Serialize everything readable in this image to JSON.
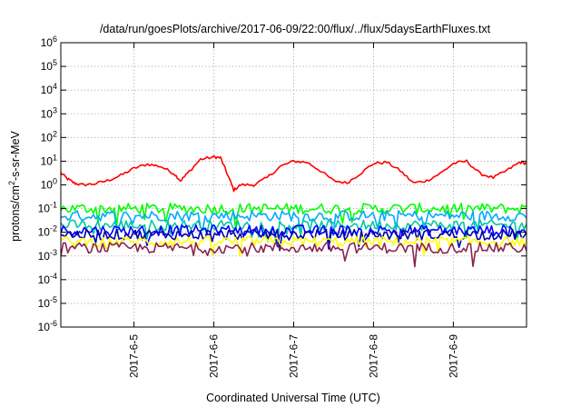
{
  "chart_data": {
    "type": "line",
    "title": "/data/run/goesPlots/archive/2017-06-09/22:00/flux/../flux/5daysEarthFluxes.txt",
    "xlabel": "Coordinated Universal Time (UTC)",
    "ylabel": {
      "pre": "protons/cm",
      "sup": "2",
      "post": "-s-sr-MeV"
    },
    "x_range": [
      "2017-06-04T02:00",
      "2017-06-09T22:00"
    ],
    "x_ticks": [
      "2017-6-5",
      "2017-6-6",
      "2017-6-7",
      "2017-6-8",
      "2017-6-9"
    ],
    "y_scale": "log",
    "ylim": [
      1e-06,
      1000000.0
    ],
    "y_ticks": [
      {
        "base": "10",
        "exp": "-6"
      },
      {
        "base": "10",
        "exp": "-5"
      },
      {
        "base": "10",
        "exp": "-4"
      },
      {
        "base": "10",
        "exp": "-3"
      },
      {
        "base": "10",
        "exp": "-2"
      },
      {
        "base": "10",
        "exp": "-1"
      },
      {
        "base": "10",
        "exp": "0"
      },
      {
        "base": "10",
        "exp": "1"
      },
      {
        "base": "10",
        "exp": "2"
      },
      {
        "base": "10",
        "exp": "3"
      },
      {
        "base": "10",
        "exp": "4"
      },
      {
        "base": "10",
        "exp": "5"
      },
      {
        "base": "10",
        "exp": "6"
      }
    ],
    "grid": true,
    "legend": "none",
    "series": [
      {
        "color": "#ff0000",
        "points": [
          [
            "2017-06-04T02:00",
            3.2
          ],
          [
            "2017-06-04T04:00",
            1.8
          ],
          [
            "2017-06-04T06:00",
            1.2
          ],
          [
            "2017-06-04T08:00",
            1.0
          ],
          [
            "2017-06-04T12:00",
            1.1
          ],
          [
            "2017-06-04T16:00",
            1.5
          ],
          [
            "2017-06-04T20:00",
            2.5
          ],
          [
            "2017-06-05T00:00",
            5.0
          ],
          [
            "2017-06-05T04:00",
            7.5
          ],
          [
            "2017-06-05T08:00",
            6.0
          ],
          [
            "2017-06-05T12:00",
            3.0
          ],
          [
            "2017-06-05T14:00",
            1.5
          ],
          [
            "2017-06-05T16:00",
            3.0
          ],
          [
            "2017-06-05T20:00",
            12.0
          ],
          [
            "2017-06-06T00:00",
            15.0
          ],
          [
            "2017-06-06T02:00",
            14.0
          ],
          [
            "2017-06-06T04:00",
            3.0
          ],
          [
            "2017-06-06T06:00",
            0.6
          ],
          [
            "2017-06-06T08:00",
            1.0
          ],
          [
            "2017-06-06T12:00",
            1.0
          ],
          [
            "2017-06-06T16:00",
            2.0
          ],
          [
            "2017-06-06T20:00",
            6.0
          ],
          [
            "2017-06-07T00:00",
            10.0
          ],
          [
            "2017-06-07T04:00",
            9.0
          ],
          [
            "2017-06-07T08:00",
            4.0
          ],
          [
            "2017-06-07T12:00",
            1.5
          ],
          [
            "2017-06-07T16:00",
            1.2
          ],
          [
            "2017-06-07T20:00",
            3.0
          ],
          [
            "2017-06-08T00:00",
            8.0
          ],
          [
            "2017-06-08T04:00",
            9.0
          ],
          [
            "2017-06-08T08:00",
            4.0
          ],
          [
            "2017-06-08T12:00",
            1.2
          ],
          [
            "2017-06-08T16:00",
            1.5
          ],
          [
            "2017-06-08T20:00",
            3.0
          ],
          [
            "2017-06-09T00:00",
            8.0
          ],
          [
            "2017-06-09T04:00",
            10.0
          ],
          [
            "2017-06-09T08:00",
            3.0
          ],
          [
            "2017-06-09T12:00",
            2.0
          ],
          [
            "2017-06-09T16:00",
            4.0
          ],
          [
            "2017-06-09T20:00",
            9.0
          ],
          [
            "2017-06-09T22:00",
            8.0
          ]
        ]
      },
      {
        "color": "#00ff00",
        "level": 0.1
      },
      {
        "color": "#00aaff",
        "level": 0.05
      },
      {
        "color": "#00c8a0",
        "level": 0.02
      },
      {
        "color": "#0000ff",
        "level": 0.012
      },
      {
        "color": "#0000aa",
        "level": 0.008
      },
      {
        "color": "#ffff00",
        "level": 0.004
      },
      {
        "color": "#8b2252",
        "level": 0.0022
      }
    ]
  }
}
